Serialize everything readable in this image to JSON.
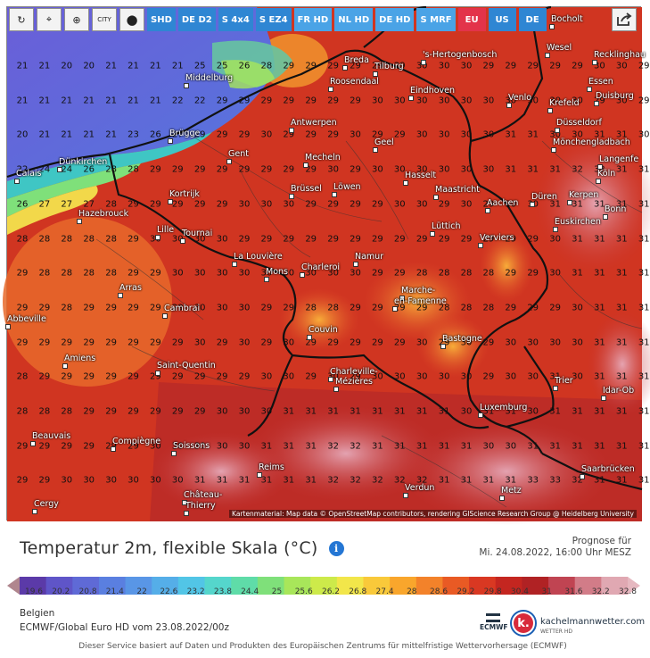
{
  "toolbar": {
    "tools": [
      {
        "name": "refresh-icon",
        "glyph": "↻"
      },
      {
        "name": "location-pin-icon",
        "glyph": "⌖"
      },
      {
        "name": "zoom-icon",
        "glyph": "⊕"
      },
      {
        "name": "city-toggle",
        "glyph": "CITY"
      },
      {
        "name": "dot-icon",
        "glyph": "●"
      }
    ],
    "models": [
      {
        "label": "SHD",
        "style": "dark"
      },
      {
        "label": "DE D2",
        "style": "dark"
      },
      {
        "label": "S 4x4",
        "style": "dark"
      },
      {
        "label": "S EZ4",
        "style": "dark"
      },
      {
        "label": "FR HD",
        "style": "light"
      },
      {
        "label": "NL HD",
        "style": "light"
      },
      {
        "label": "DE HD",
        "style": "light"
      },
      {
        "label": "S MRF",
        "style": "light"
      },
      {
        "label": "EU",
        "style": "active"
      },
      {
        "label": "US",
        "style": "dark"
      },
      {
        "label": "DE",
        "style": "dark"
      }
    ],
    "share_icon": "share-icon"
  },
  "map": {
    "credit": "Kartenmaterial: Map data © OpenStreetMap contributors, rendering GIScience Research Group @ Heidelberg University",
    "grid_rows": [
      [
        21,
        21,
        20,
        20,
        21,
        21,
        21,
        21,
        25,
        25,
        26,
        28,
        29,
        29,
        29,
        29,
        29,
        29,
        30,
        30,
        30,
        29,
        29,
        29,
        29,
        29,
        30,
        30,
        29
      ],
      [
        21,
        21,
        21,
        21,
        21,
        21,
        21,
        22,
        22,
        29,
        29,
        29,
        29,
        29,
        29,
        29,
        30,
        30,
        30,
        30,
        30,
        30,
        30,
        30,
        30,
        30,
        29,
        30,
        29
      ],
      [
        20,
        21,
        21,
        21,
        21,
        23,
        26,
        27,
        29,
        29,
        29,
        30,
        29,
        29,
        29,
        30,
        29,
        29,
        30,
        30,
        30,
        30,
        31,
        31,
        30,
        30,
        31,
        31,
        30
      ],
      [
        22,
        24,
        24,
        26,
        28,
        28,
        29,
        29,
        29,
        29,
        29,
        29,
        29,
        29,
        30,
        29,
        30,
        30,
        30,
        30,
        30,
        30,
        31,
        31,
        31,
        32,
        32,
        31,
        31
      ],
      [
        26,
        27,
        27,
        27,
        28,
        29,
        29,
        29,
        29,
        29,
        30,
        30,
        30,
        29,
        29,
        29,
        29,
        30,
        30,
        29,
        30,
        29,
        30,
        30,
        31,
        31,
        31,
        31,
        31
      ],
      [
        28,
        28,
        28,
        28,
        28,
        29,
        30,
        30,
        30,
        30,
        29,
        29,
        29,
        29,
        29,
        29,
        29,
        29,
        29,
        29,
        29,
        29,
        29,
        29,
        30,
        31,
        31,
        31,
        31
      ],
      [
        29,
        28,
        28,
        28,
        28,
        29,
        29,
        30,
        30,
        30,
        30,
        30,
        30,
        30,
        30,
        30,
        29,
        29,
        28,
        28,
        28,
        28,
        29,
        29,
        30,
        31,
        31,
        31,
        31
      ],
      [
        29,
        29,
        28,
        29,
        29,
        29,
        29,
        29,
        30,
        30,
        30,
        29,
        29,
        28,
        28,
        29,
        29,
        29,
        29,
        28,
        28,
        28,
        29,
        29,
        29,
        30,
        31,
        31,
        31
      ],
      [
        29,
        29,
        29,
        29,
        29,
        29,
        29,
        29,
        30,
        29,
        30,
        29,
        30,
        29,
        29,
        29,
        29,
        29,
        30,
        29,
        30,
        29,
        30,
        30,
        30,
        30,
        31,
        31,
        31
      ],
      [
        28,
        29,
        29,
        29,
        29,
        29,
        29,
        29,
        29,
        29,
        29,
        30,
        30,
        29,
        30,
        29,
        30,
        30,
        30,
        30,
        30,
        29,
        30,
        30,
        31,
        30,
        31,
        31,
        31
      ],
      [
        28,
        28,
        28,
        29,
        29,
        29,
        29,
        29,
        29,
        30,
        30,
        30,
        31,
        31,
        31,
        31,
        31,
        31,
        31,
        31,
        30,
        31,
        31,
        30,
        31,
        31,
        31,
        31,
        31
      ],
      [
        29,
        29,
        29,
        29,
        29,
        29,
        30,
        30,
        30,
        30,
        30,
        31,
        31,
        31,
        32,
        32,
        31,
        31,
        31,
        31,
        31,
        30,
        30,
        31,
        31,
        31,
        31,
        31,
        31
      ],
      [
        29,
        29,
        30,
        30,
        30,
        30,
        30,
        30,
        31,
        31,
        31,
        31,
        31,
        31,
        32,
        32,
        32,
        32,
        32,
        31,
        31,
        31,
        31,
        33,
        33,
        32,
        31,
        31,
        31
      ]
    ],
    "cities": [
      {
        "name": "Bocholt"
      },
      {
        "name": "Wesel"
      },
      {
        "name": "Recklinghau"
      },
      {
        "name": "Breda"
      },
      {
        "name": "Tilburg"
      },
      {
        "name": "'s-Hertogenbosch"
      },
      {
        "name": "Middelburg"
      },
      {
        "name": "Roosendaal"
      },
      {
        "name": "Eindhoven"
      },
      {
        "name": "Essen"
      },
      {
        "name": "Duisburg"
      },
      {
        "name": "Venlo"
      },
      {
        "name": "Krefeld"
      },
      {
        "name": "Antwerpen"
      },
      {
        "name": "Düsseldorf"
      },
      {
        "name": "Brügge"
      },
      {
        "name": "Geel"
      },
      {
        "name": "Mönchengladbach"
      },
      {
        "name": "Gent"
      },
      {
        "name": "Mecheln"
      },
      {
        "name": "Langenfe"
      },
      {
        "name": "Dünkirchen"
      },
      {
        "name": "Hasselt"
      },
      {
        "name": "Köln"
      },
      {
        "name": "Calais"
      },
      {
        "name": "Brüssel"
      },
      {
        "name": "Löwen"
      },
      {
        "name": "Maastricht"
      },
      {
        "name": "Kortrijk"
      },
      {
        "name": "Düren"
      },
      {
        "name": "Kerpen"
      },
      {
        "name": "Hazebrouck"
      },
      {
        "name": "Aachen"
      },
      {
        "name": "Bonn"
      },
      {
        "name": "Euskirchen"
      },
      {
        "name": "Lille"
      },
      {
        "name": "Tournai"
      },
      {
        "name": "Lüttich"
      },
      {
        "name": "Verviers"
      },
      {
        "name": "La Louvière"
      },
      {
        "name": "Namur"
      },
      {
        "name": "Mons"
      },
      {
        "name": "Charleroi"
      },
      {
        "name": "Arras"
      },
      {
        "name": "Marche-"
      },
      {
        "name": "en-Famenne"
      },
      {
        "name": "Cambrai"
      },
      {
        "name": "Abbeville"
      },
      {
        "name": "Couvin"
      },
      {
        "name": "Bastogne"
      },
      {
        "name": "Amiens"
      },
      {
        "name": "Saint-Quentin"
      },
      {
        "name": "Charleville-"
      },
      {
        "name": "Mézières"
      },
      {
        "name": "Trier"
      },
      {
        "name": "Idar-Ob"
      },
      {
        "name": "Luxemburg"
      },
      {
        "name": "Beauvais"
      },
      {
        "name": "Compiègne"
      },
      {
        "name": "Soissons"
      },
      {
        "name": "Saarbrücken"
      },
      {
        "name": "Reims"
      },
      {
        "name": "Château-"
      },
      {
        "name": "Thierry"
      },
      {
        "name": "Verdun"
      },
      {
        "name": "Metz"
      },
      {
        "name": "Cergy"
      }
    ]
  },
  "legend": {
    "title": "Temperatur 2m, flexible Skala",
    "unit": "(°C)",
    "forecast_label": "Prognose für",
    "forecast_time": "Mi. 24.08.2022, 16:00 Uhr MESZ",
    "scale_values": [
      "19.6",
      "20.2",
      "20.8",
      "21.4",
      "22",
      "22.6",
      "23.2",
      "23.8",
      "24.4",
      "25",
      "25.6",
      "26.2",
      "26.8",
      "27.4",
      "28",
      "28.6",
      "29.2",
      "29.8",
      "30.4",
      "31",
      "31.6",
      "32.2",
      "32.8"
    ],
    "scale_colors": [
      "#5b3aa8",
      "#5f55c8",
      "#5f6ad6",
      "#5a7fe0",
      "#5996e6",
      "#55aee8",
      "#52c5e6",
      "#55d6cc",
      "#5fdca8",
      "#7fe07a",
      "#a8e65a",
      "#cdea4a",
      "#f2e64a",
      "#f9c93a",
      "#f9a62c",
      "#f3822a",
      "#e95a24",
      "#d93822",
      "#c42620",
      "#b02224",
      "#c04452",
      "#d27c88",
      "#e0a8b2"
    ],
    "region": "Belgien",
    "model_run": "ECMWF/Global Euro HD vom 23.08.2022/00z",
    "ecmwf_logo": "ECMWF",
    "km_logo_letter": "k.",
    "km_name": "kachelmannwetter.com",
    "km_sub": "WETTER HD",
    "disclaimer": "Dieser Service basiert auf Daten und Produkten des Europäischen Zentrums für mittelfristige Wettervorhersage (ECMWF)"
  }
}
